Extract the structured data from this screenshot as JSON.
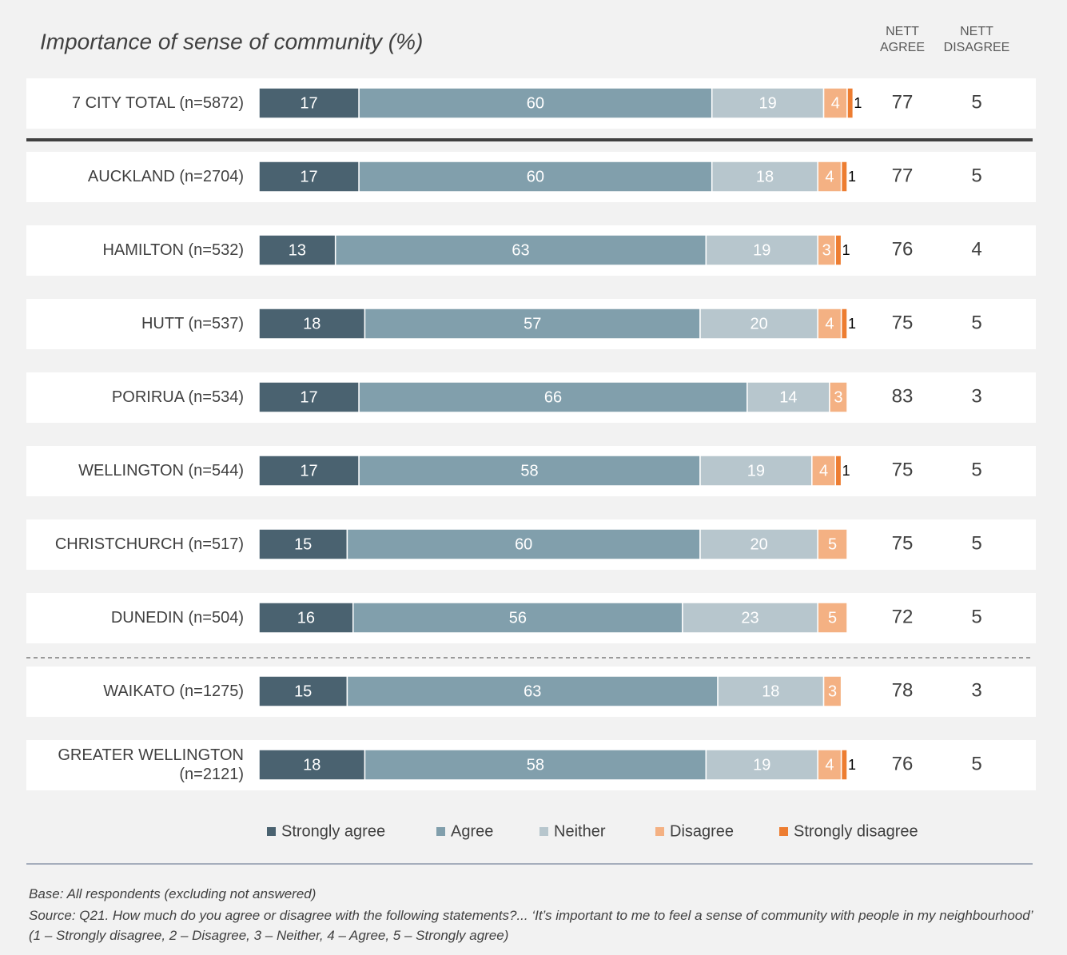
{
  "chart_data": {
    "type": "bar",
    "orientation": "horizontal",
    "stacked": true,
    "title": "Importance of sense of community (%)",
    "categories": [
      "7 CITY TOTAL (n=5872)",
      "AUCKLAND (n=2704)",
      "HAMILTON (n=532)",
      "HUTT (n=537)",
      "PORIRUA (n=534)",
      "WELLINGTON (n=544)",
      "CHRISTCHURCH (n=517)",
      "DUNEDIN (n=504)",
      "WAIKATO (n=1275)",
      "GREATER WELLINGTON (n=2121)"
    ],
    "xlim": [
      0,
      100
    ],
    "series": [
      {
        "name": "Strongly agree",
        "color": "#4a6270",
        "values": [
          17,
          17,
          13,
          18,
          17,
          17,
          15,
          16,
          15,
          18
        ]
      },
      {
        "name": "Agree",
        "color": "#819fac",
        "values": [
          60,
          60,
          63,
          57,
          66,
          58,
          60,
          56,
          63,
          58
        ]
      },
      {
        "name": "Neither",
        "color": "#b7c6cd",
        "values": [
          19,
          18,
          19,
          20,
          14,
          19,
          20,
          23,
          18,
          19
        ]
      },
      {
        "name": "Disagree",
        "color": "#f4b183",
        "values": [
          4,
          4,
          3,
          4,
          3,
          4,
          5,
          5,
          3,
          4
        ]
      },
      {
        "name": "Strongly disagree",
        "color": "#ed7d31",
        "values": [
          1,
          1,
          1,
          1,
          null,
          1,
          null,
          null,
          null,
          1
        ]
      }
    ],
    "nett_agree": {
      "header": "NETT AGREE",
      "values": [
        77,
        77,
        76,
        75,
        83,
        75,
        75,
        72,
        78,
        76
      ]
    },
    "nett_disagree": {
      "header": "NETT DISAGREE",
      "values": [
        5,
        5,
        4,
        5,
        3,
        5,
        5,
        5,
        3,
        5
      ]
    },
    "notes": [
      "Base: All respondents (excluding not answered)",
      "Source: Q21. How much do you agree or disagree with the following statements?... ‘It’s important to me to feel a sense of community with people in my neighbourhood’  (1 – Strongly disagree, 2 – Disagree, 3 – Neither, 4 – Agree, 5 – Strongly agree)"
    ]
  }
}
